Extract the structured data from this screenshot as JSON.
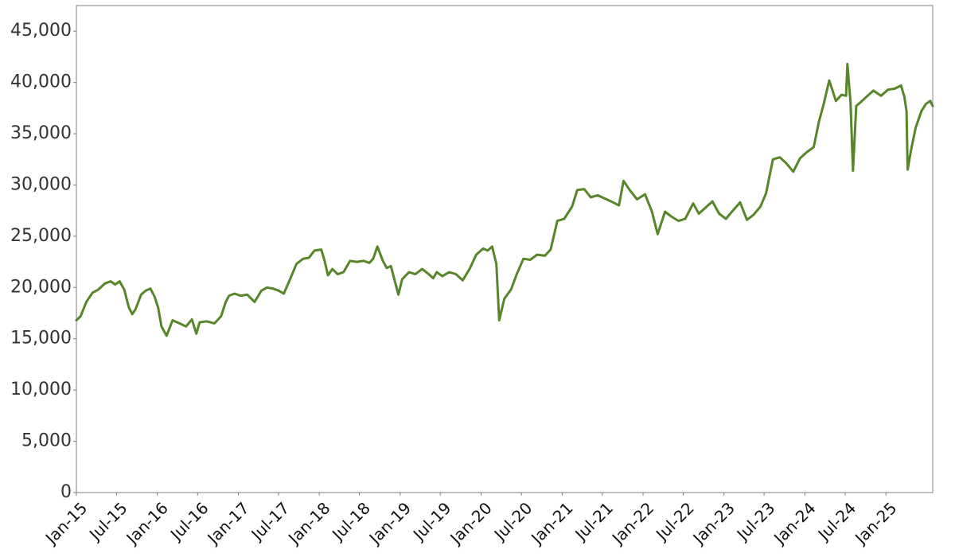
{
  "chart_data": {
    "type": "line",
    "title": "",
    "xlabel": "",
    "ylabel": "",
    "ylim": [
      0,
      47500
    ],
    "xlim": [
      "2015-01-01",
      "2025-07-31"
    ],
    "grid": false,
    "line_color": "#578529",
    "yticks": [
      {
        "value": 0,
        "label": "0"
      },
      {
        "value": 5000,
        "label": "5,000"
      },
      {
        "value": 10000,
        "label": "10,000"
      },
      {
        "value": 15000,
        "label": "15,000"
      },
      {
        "value": 20000,
        "label": "20,000"
      },
      {
        "value": 25000,
        "label": "25,000"
      },
      {
        "value": 30000,
        "label": "30,000"
      },
      {
        "value": 35000,
        "label": "35,000"
      },
      {
        "value": 40000,
        "label": "40,000"
      },
      {
        "value": 45000,
        "label": "45,000"
      }
    ],
    "xticks": [
      {
        "date": "2015-01-01",
        "label": "Jan-15"
      },
      {
        "date": "2015-07-01",
        "label": "Jul-15"
      },
      {
        "date": "2016-01-01",
        "label": "Jan-16"
      },
      {
        "date": "2016-07-01",
        "label": "Jul-16"
      },
      {
        "date": "2017-01-01",
        "label": "Jan-17"
      },
      {
        "date": "2017-07-01",
        "label": "Jul-17"
      },
      {
        "date": "2018-01-01",
        "label": "Jan-18"
      },
      {
        "date": "2018-07-01",
        "label": "Jul-18"
      },
      {
        "date": "2019-01-01",
        "label": "Jan-19"
      },
      {
        "date": "2019-07-01",
        "label": "Jul-19"
      },
      {
        "date": "2020-01-01",
        "label": "Jan-20"
      },
      {
        "date": "2020-07-01",
        "label": "Jul-20"
      },
      {
        "date": "2021-01-01",
        "label": "Jan-21"
      },
      {
        "date": "2021-07-01",
        "label": "Jul-21"
      },
      {
        "date": "2022-01-01",
        "label": "Jan-22"
      },
      {
        "date": "2022-07-01",
        "label": "Jul-22"
      },
      {
        "date": "2023-01-01",
        "label": "Jan-23"
      },
      {
        "date": "2023-07-01",
        "label": "Jul-23"
      },
      {
        "date": "2024-01-01",
        "label": "Jan-24"
      },
      {
        "date": "2024-07-01",
        "label": "Jul-24"
      },
      {
        "date": "2025-01-01",
        "label": "Jan-25"
      }
    ],
    "series": [
      {
        "x": [
          "2015-01-01",
          "2015-01-20",
          "2015-02-15",
          "2015-03-15",
          "2015-04-10",
          "2015-05-10",
          "2015-06-05",
          "2015-06-25",
          "2015-07-15",
          "2015-08-05",
          "2015-08-25",
          "2015-09-10",
          "2015-09-25",
          "2015-10-20",
          "2015-11-10",
          "2015-12-01",
          "2015-12-20",
          "2016-01-05",
          "2016-01-20",
          "2016-02-12",
          "2016-03-10",
          "2016-04-10",
          "2016-05-10",
          "2016-06-05",
          "2016-06-25",
          "2016-07-10",
          "2016-08-10",
          "2016-09-15",
          "2016-10-15",
          "2016-11-05",
          "2016-11-20",
          "2016-12-15",
          "2017-01-10",
          "2017-02-10",
          "2017-03-15",
          "2017-04-15",
          "2017-05-10",
          "2017-06-05",
          "2017-07-01",
          "2017-07-25",
          "2017-08-20",
          "2017-09-20",
          "2017-10-20",
          "2017-11-15",
          "2017-12-10",
          "2018-01-10",
          "2018-01-25",
          "2018-02-09",
          "2018-03-01",
          "2018-03-25",
          "2018-04-20",
          "2018-05-20",
          "2018-06-20",
          "2018-07-20",
          "2018-08-15",
          "2018-09-01",
          "2018-09-20",
          "2018-10-15",
          "2018-11-01",
          "2018-11-20",
          "2018-12-24",
          "2019-01-10",
          "2019-02-10",
          "2019-03-10",
          "2019-04-10",
          "2019-05-10",
          "2019-05-30",
          "2019-06-15",
          "2019-07-10",
          "2019-08-10",
          "2019-09-10",
          "2019-10-10",
          "2019-11-10",
          "2019-12-10",
          "2020-01-10",
          "2020-01-31",
          "2020-02-20",
          "2020-03-10",
          "2020-03-23",
          "2020-04-15",
          "2020-05-15",
          "2020-06-10",
          "2020-07-10",
          "2020-08-10",
          "2020-09-10",
          "2020-10-15",
          "2020-11-10",
          "2020-12-10",
          "2021-01-10",
          "2021-02-15",
          "2021-03-10",
          "2021-04-10",
          "2021-05-10",
          "2021-06-10",
          "2021-07-10",
          "2021-08-10",
          "2021-09-14",
          "2021-10-05",
          "2021-11-05",
          "2021-12-05",
          "2022-01-10",
          "2022-02-10",
          "2022-03-08",
          "2022-04-10",
          "2022-05-10",
          "2022-06-10",
          "2022-07-10",
          "2022-08-15",
          "2022-09-10",
          "2022-10-05",
          "2022-11-10",
          "2022-12-10",
          "2023-01-10",
          "2023-02-10",
          "2023-03-15",
          "2023-04-15",
          "2023-05-15",
          "2023-06-15",
          "2023-07-10",
          "2023-08-10",
          "2023-09-10",
          "2023-10-10",
          "2023-11-10",
          "2023-12-10",
          "2024-01-10",
          "2024-02-10",
          "2024-03-05",
          "2024-03-25",
          "2024-04-20",
          "2024-05-20",
          "2024-06-15",
          "2024-07-05",
          "2024-07-11",
          "2024-07-25",
          "2024-08-05",
          "2024-08-20",
          "2024-09-10",
          "2024-10-05",
          "2024-11-05",
          "2024-12-10",
          "2025-01-10",
          "2025-02-10",
          "2025-03-10",
          "2025-03-25",
          "2025-04-04",
          "2025-04-09",
          "2025-04-25",
          "2025-05-15",
          "2025-06-10",
          "2025-06-30",
          "2025-07-20",
          "2025-07-31"
        ],
        "y": [
          16800,
          17200,
          18600,
          19500,
          19800,
          20400,
          20600,
          20300,
          20600,
          19800,
          18100,
          17400,
          17900,
          19300,
          19700,
          19900,
          19100,
          18000,
          16200,
          15300,
          16800,
          16500,
          16200,
          16900,
          15500,
          16600,
          16700,
          16500,
          17200,
          18600,
          19200,
          19400,
          19200,
          19300,
          18600,
          19700,
          20000,
          19900,
          19700,
          19400,
          20700,
          22300,
          22800,
          22900,
          23600,
          23700,
          22600,
          21200,
          21800,
          21300,
          21500,
          22600,
          22500,
          22600,
          22400,
          22800,
          24000,
          22600,
          21900,
          22100,
          19300,
          20800,
          21500,
          21300,
          21800,
          21300,
          20900,
          21500,
          21100,
          21500,
          21300,
          20700,
          21800,
          23200,
          23800,
          23600,
          24000,
          22300,
          16800,
          18900,
          19800,
          21300,
          22800,
          22700,
          23200,
          23100,
          23700,
          26500,
          26700,
          27900,
          29500,
          29600,
          28800,
          29000,
          28700,
          28400,
          28000,
          30400,
          29400,
          28600,
          29100,
          27400,
          25200,
          27400,
          26900,
          26500,
          26700,
          28200,
          27200,
          27700,
          28400,
          27200,
          26700,
          27500,
          28300,
          26600,
          27100,
          27900,
          29200,
          32500,
          32700,
          32100,
          31300,
          32600,
          33200,
          33700,
          36200,
          37800,
          40200,
          38200,
          38800,
          38700,
          41800,
          38100,
          31400,
          37700,
          38100,
          38600,
          39200,
          38700,
          39300,
          39400,
          39700,
          38600,
          37200,
          31500,
          33500,
          35600,
          37200,
          37900,
          38200,
          37700
        ]
      }
    ]
  }
}
